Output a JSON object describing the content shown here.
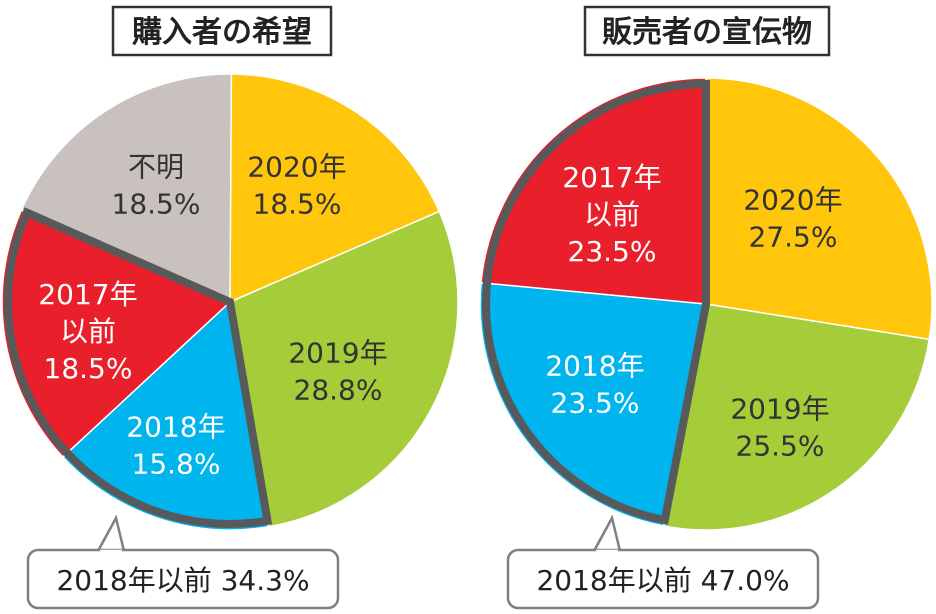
{
  "chart_data": [
    {
      "type": "pie",
      "title": "購入者の希望",
      "start_angle_deg": 0,
      "slices": [
        {
          "line1": "2020年",
          "line2": "",
          "value": "18.5%",
          "pct": 18.5,
          "color": "#FFC60B",
          "text_color": "#333333"
        },
        {
          "line1": "2019年",
          "line2": "",
          "value": "28.8%",
          "pct": 28.8,
          "color": "#A5CC39",
          "text_color": "#333333"
        },
        {
          "line1": "2018年",
          "line2": "",
          "value": "15.8%",
          "pct": 15.8,
          "color": "#00B4EE",
          "text_color": "#FFFFFF"
        },
        {
          "line1": "2017年",
          "line2": "以前",
          "value": "18.5%",
          "pct": 18.5,
          "color": "#E9202B",
          "text_color": "#FFFFFF"
        },
        {
          "line1": "不明",
          "line2": "",
          "value": "18.5%",
          "pct": 18.5,
          "color": "#C9C1BE",
          "text_color": "#333333"
        }
      ],
      "highlight": {
        "from_slice": 2,
        "to_slice": 3,
        "callout": "2018年以前 34.3%"
      }
    },
    {
      "type": "pie",
      "title": "販売者の宣伝物",
      "start_angle_deg": 0,
      "slices": [
        {
          "line1": "2020年",
          "line2": "",
          "value": "27.5%",
          "pct": 27.5,
          "color": "#FFC60B",
          "text_color": "#333333"
        },
        {
          "line1": "2019年",
          "line2": "",
          "value": "25.5%",
          "pct": 25.5,
          "color": "#A5CC39",
          "text_color": "#333333"
        },
        {
          "line1": "2018年",
          "line2": "",
          "value": "23.5%",
          "pct": 23.5,
          "color": "#00B4EE",
          "text_color": "#FFFFFF"
        },
        {
          "line1": "2017年",
          "line2": "以前",
          "value": "23.5%",
          "pct": 23.5,
          "color": "#E9202B",
          "text_color": "#FFFFFF"
        }
      ],
      "highlight": {
        "from_slice": 2,
        "to_slice": 3,
        "callout": "2018年以前 47.0%"
      }
    }
  ],
  "colors": {
    "outline": "#58595B",
    "callout_border": "#808080"
  }
}
